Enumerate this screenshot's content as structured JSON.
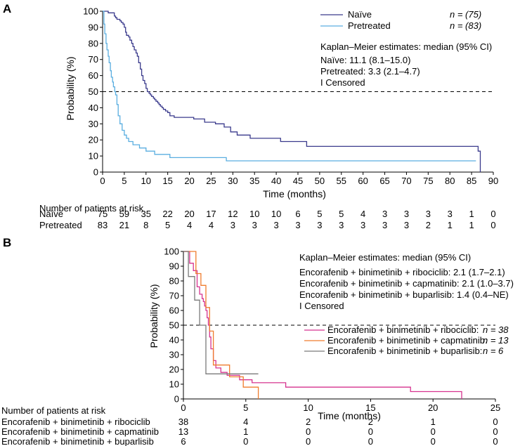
{
  "chart_data": [
    {
      "panel": "A",
      "type": "line",
      "subtype": "kaplan-meier",
      "xlabel": "Time (months)",
      "ylabel": "Probability (%)",
      "xlim": [
        0,
        90
      ],
      "ylim": [
        0,
        100
      ],
      "xticks": [
        0,
        5,
        10,
        15,
        20,
        25,
        30,
        35,
        40,
        45,
        50,
        55,
        60,
        65,
        70,
        75,
        80,
        85,
        90
      ],
      "yticks": [
        0,
        10,
        20,
        30,
        40,
        50,
        60,
        70,
        80,
        90,
        100
      ],
      "reference_line_y": 50,
      "legend": [
        {
          "label": "Naïve",
          "n_label": "n = (75)",
          "color": "#3a3a8c"
        },
        {
          "label": "Pretreated",
          "n_label": "n = (83)",
          "color": "#5aaee0"
        }
      ],
      "annotation": {
        "title": "Kaplan–Meier estimates: median (95% CI)",
        "lines": [
          "Naïve: 11.1 (8.1–15.0)",
          "Pretreated: 3.3 (2.1–4.7)"
        ],
        "censored_note": "I Censored"
      },
      "series": [
        {
          "name": "Naïve",
          "color": "#3a3a8c",
          "x": [
            0,
            1.3,
            2.7,
            3,
            3.3,
            4,
            4.3,
            4.7,
            5,
            5.3,
            5.5,
            6,
            6.3,
            6.7,
            7,
            7.3,
            7.7,
            8,
            8.3,
            8.7,
            9,
            9.3,
            9.7,
            10,
            10.3,
            10.7,
            11,
            11.3,
            11.7,
            12,
            12.3,
            12.7,
            13,
            13.3,
            13.7,
            14,
            14.5,
            15,
            15.5,
            16.5,
            21,
            23.5,
            26,
            28,
            29.5,
            31,
            34,
            41,
            47,
            86.5,
            87
          ],
          "y": [
            100,
            99,
            97,
            96,
            95,
            94,
            93,
            92,
            90,
            87,
            85,
            84,
            82,
            80,
            78,
            76,
            74,
            72,
            68,
            64,
            60,
            57,
            55,
            52,
            50,
            49,
            48,
            47,
            46,
            45,
            44,
            43,
            42,
            41,
            40,
            39,
            38,
            37,
            35,
            34,
            33,
            31,
            30,
            28,
            25,
            23,
            21,
            19,
            16,
            13,
            0
          ]
        },
        {
          "name": "Pretreated",
          "color": "#5aaee0",
          "x": [
            0,
            0.3,
            0.5,
            0.8,
            1,
            1.3,
            1.5,
            1.8,
            2,
            2.3,
            2.5,
            2.8,
            3,
            3.3,
            3.6,
            4,
            4.5,
            5,
            5.5,
            6,
            7,
            8.5,
            10,
            12,
            15.5,
            28.5,
            86
          ],
          "y": [
            100,
            92,
            86,
            80,
            76,
            72,
            68,
            63,
            59,
            56,
            53,
            50,
            48,
            42,
            35,
            30,
            26,
            23,
            21,
            19,
            17,
            15,
            13,
            11,
            9,
            7,
            7
          ]
        }
      ],
      "risk_table": {
        "title": "Number of patients at risk",
        "timepoints": [
          0,
          5,
          10,
          15,
          20,
          25,
          30,
          35,
          40,
          45,
          50,
          55,
          60,
          65,
          70,
          75,
          80,
          85,
          90
        ],
        "rows": [
          {
            "label": "Naïve",
            "values": [
              75,
              59,
              35,
              22,
              20,
              17,
              12,
              10,
              10,
              6,
              5,
              5,
              4,
              3,
              3,
              3,
              3,
              1,
              0
            ]
          },
          {
            "label": "Pretreated",
            "values": [
              83,
              21,
              8,
              5,
              4,
              4,
              3,
              3,
              3,
              3,
              3,
              3,
              3,
              3,
              3,
              2,
              1,
              1,
              0
            ]
          }
        ]
      }
    },
    {
      "panel": "B",
      "type": "line",
      "subtype": "kaplan-meier",
      "xlabel": "Time (months)",
      "ylabel": "Probability (%)",
      "xlim": [
        0,
        25
      ],
      "ylim": [
        0,
        100
      ],
      "xticks": [
        0,
        5,
        10,
        15,
        20,
        25
      ],
      "yticks": [
        0,
        10,
        20,
        30,
        40,
        50,
        60,
        70,
        80,
        90,
        100
      ],
      "reference_line_y": 50,
      "annotation": {
        "title": "Kaplan–Meier estimates: median (95% CI)",
        "lines": [
          "Encorafenib + binimetinib + ribociclib: 2.1 (1.7–2.1)",
          "Encorafenib + binimetinib + capmatinib: 2.1 (1.0–3.7)",
          "Encorafenib + binimetinib + buparlisib: 1.4 (0.4–NE)"
        ],
        "censored_note": "I Censored"
      },
      "legend": [
        {
          "label": "Encorafenib + binimetinib + ribociclib:",
          "n_label": "n = 38",
          "color": "#d6338f"
        },
        {
          "label": "Encorafenib + binimetinib + capmatinib:",
          "n_label": "n = 13",
          "color": "#ef7c2e"
        },
        {
          "label": "Encorafenib + binimetinib + buparlisib:",
          "n_label": "n = 6",
          "color": "#7a7a7a"
        }
      ],
      "series": [
        {
          "name": "Encorafenib + binimetinib + ribociclib",
          "color": "#d6338f",
          "x": [
            0,
            0.5,
            0.8,
            1.1,
            1.3,
            1.5,
            1.6,
            1.7,
            1.8,
            1.9,
            2,
            2.1,
            2.2,
            2.4,
            2.6,
            3,
            3.5,
            4.5,
            5.5,
            8.2,
            18.2,
            22.3
          ],
          "y": [
            100,
            92,
            87,
            76,
            71,
            68,
            66,
            63,
            60,
            55,
            50,
            42,
            34,
            26,
            21,
            18,
            16,
            13,
            11,
            8,
            5,
            0
          ]
        },
        {
          "name": "Encorafenib + binimetinib + capmatinib",
          "color": "#ef7c2e",
          "x": [
            0,
            1,
            1.4,
            1.8,
            2.1,
            2.4,
            3.7,
            4.8,
            6
          ],
          "y": [
            100,
            85,
            77,
            62,
            46,
            23,
            15,
            8,
            0
          ]
        },
        {
          "name": "Encorafenib + binimetinib + buparlisib",
          "color": "#7a7a7a",
          "x": [
            0,
            0.4,
            0.9,
            1.3,
            1.8,
            6
          ],
          "y": [
            100,
            83,
            67,
            50,
            17,
            17
          ]
        }
      ],
      "risk_table": {
        "title": "Number of patients at risk",
        "timepoints": [
          0,
          5,
          10,
          15,
          20,
          25
        ],
        "rows": [
          {
            "label": "Encorafenib + binimetinib + ribociclib",
            "values": [
              38,
              4,
              2,
              2,
              1,
              0
            ]
          },
          {
            "label": "Encorafenib + binimetinib + capmatinib",
            "values": [
              13,
              1,
              0,
              0,
              0,
              0
            ]
          },
          {
            "label": "Encorafenib + binimetinib + buparlisib",
            "values": [
              6,
              0,
              0,
              0,
              0,
              0
            ]
          }
        ]
      }
    }
  ]
}
